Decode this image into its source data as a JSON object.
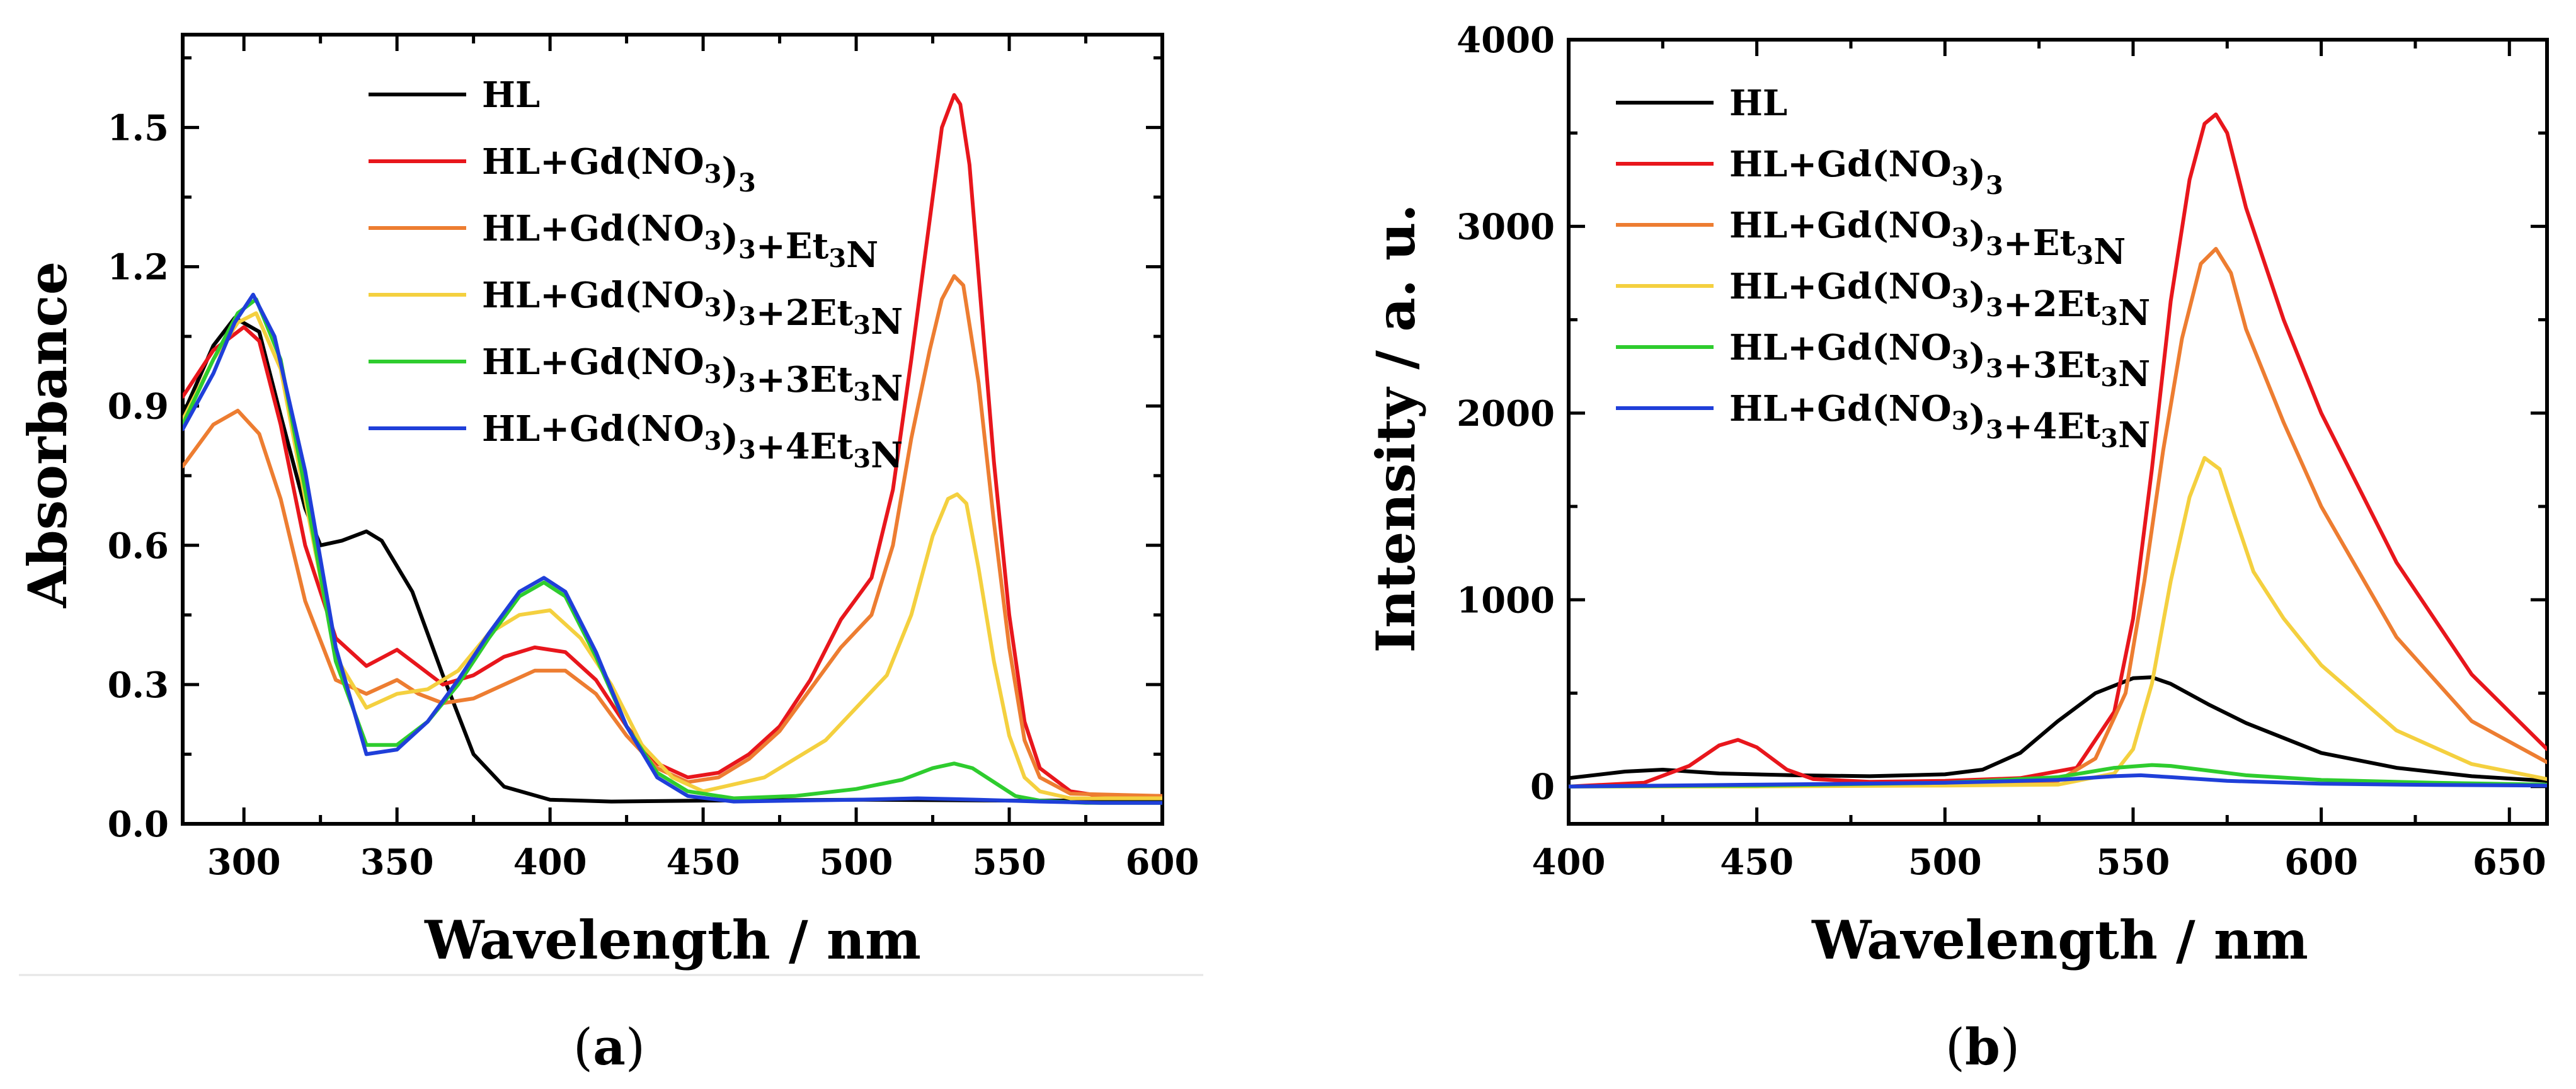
{
  "chart_data": [
    {
      "type": "line",
      "panel_label": "a",
      "xlabel": "Wavelength / nm",
      "ylabel": "Absorbance",
      "xlim": [
        280,
        600
      ],
      "ylim": [
        0,
        1.7
      ],
      "x_ticks": [
        300,
        350,
        400,
        450,
        500,
        550,
        600
      ],
      "y_ticks": [
        0.0,
        0.3,
        0.6,
        0.9,
        1.2,
        1.5
      ],
      "y_tick_labels": [
        "0.0",
        "0.3",
        "0.6",
        "0.9",
        "1.2",
        "1.5"
      ],
      "legend_position": "top-center",
      "series": [
        {
          "name": "HL",
          "legend": {
            "base": "HL",
            "sub": "",
            "tail": "",
            "sub2": "",
            "tail2": ""
          },
          "color": "#000000",
          "x": [
            280,
            290,
            297,
            305,
            312,
            320,
            325,
            332,
            340,
            345,
            355,
            365,
            375,
            385,
            400,
            420,
            450,
            500,
            550,
            600
          ],
          "y": [
            0.88,
            1.03,
            1.09,
            1.06,
            0.88,
            0.68,
            0.6,
            0.61,
            0.63,
            0.61,
            0.5,
            0.32,
            0.15,
            0.08,
            0.052,
            0.048,
            0.05,
            0.052,
            0.05,
            0.05
          ]
        },
        {
          "name": "HL+Gd(NO3)3",
          "legend": {
            "base": "HL+Gd(NO",
            "sub": "3",
            "tail": ")",
            "sub2": "3",
            "tail2": ""
          },
          "color": "#e8161c",
          "x": [
            280,
            290,
            300,
            305,
            312,
            320,
            330,
            340,
            350,
            357,
            365,
            375,
            385,
            395,
            405,
            415,
            425,
            435,
            445,
            455,
            465,
            475,
            485,
            495,
            505,
            512,
            518,
            524,
            528,
            532,
            534,
            537,
            541,
            545,
            550,
            555,
            560,
            570,
            580,
            600
          ],
          "y": [
            0.92,
            1.02,
            1.07,
            1.04,
            0.86,
            0.6,
            0.4,
            0.34,
            0.375,
            0.34,
            0.3,
            0.32,
            0.36,
            0.38,
            0.37,
            0.31,
            0.21,
            0.13,
            0.1,
            0.11,
            0.15,
            0.21,
            0.31,
            0.44,
            0.53,
            0.72,
            1.0,
            1.3,
            1.5,
            1.57,
            1.55,
            1.42,
            1.1,
            0.78,
            0.45,
            0.22,
            0.12,
            0.07,
            0.06,
            0.06
          ]
        },
        {
          "name": "HL+Gd(NO3)3+Et3N",
          "legend": {
            "base": "HL+Gd(NO",
            "sub": "3",
            "tail": ")",
            "sub2": "3",
            "tail2": "+Et₃N"
          },
          "color": "#ed7d31",
          "x": [
            280,
            290,
            298,
            305,
            312,
            320,
            330,
            340,
            350,
            357,
            365,
            375,
            385,
            395,
            405,
            415,
            425,
            435,
            445,
            455,
            465,
            475,
            485,
            495,
            505,
            512,
            518,
            524,
            528,
            532,
            535,
            540,
            545,
            550,
            555,
            560,
            570,
            600
          ],
          "y": [
            0.77,
            0.86,
            0.89,
            0.84,
            0.7,
            0.48,
            0.31,
            0.28,
            0.31,
            0.28,
            0.26,
            0.27,
            0.3,
            0.33,
            0.33,
            0.28,
            0.19,
            0.12,
            0.09,
            0.1,
            0.14,
            0.2,
            0.29,
            0.38,
            0.45,
            0.6,
            0.83,
            1.02,
            1.13,
            1.18,
            1.16,
            0.95,
            0.65,
            0.38,
            0.18,
            0.1,
            0.065,
            0.06
          ]
        },
        {
          "name": "HL+Gd(NO3)3+2Et3N",
          "legend": {
            "base": "HL+Gd(NO",
            "sub": "3",
            "tail": ")",
            "sub2": "3",
            "tail2": "+2Et₃N"
          },
          "color": "#f4d03f",
          "x": [
            280,
            290,
            298,
            304,
            312,
            320,
            330,
            340,
            350,
            360,
            370,
            380,
            390,
            400,
            410,
            420,
            430,
            440,
            450,
            470,
            490,
            500,
            510,
            518,
            525,
            530,
            533,
            536,
            540,
            545,
            550,
            555,
            560,
            570,
            600
          ],
          "y": [
            0.87,
            1.0,
            1.08,
            1.1,
            0.98,
            0.7,
            0.36,
            0.25,
            0.28,
            0.29,
            0.33,
            0.41,
            0.45,
            0.46,
            0.4,
            0.3,
            0.17,
            0.1,
            0.07,
            0.1,
            0.18,
            0.25,
            0.32,
            0.45,
            0.62,
            0.7,
            0.71,
            0.69,
            0.55,
            0.35,
            0.19,
            0.1,
            0.07,
            0.055,
            0.055
          ]
        },
        {
          "name": "HL+Gd(NO3)3+3Et3N",
          "legend": {
            "base": "HL+Gd(NO",
            "sub": "3",
            "tail": ")",
            "sub2": "3",
            "tail2": "+3Et₃N"
          },
          "color": "#2ecc2e",
          "x": [
            280,
            290,
            298,
            304,
            312,
            320,
            330,
            340,
            350,
            360,
            370,
            380,
            390,
            398,
            405,
            415,
            425,
            435,
            445,
            460,
            480,
            500,
            515,
            525,
            532,
            538,
            545,
            552,
            560,
            575,
            600
          ],
          "y": [
            0.86,
            1.0,
            1.1,
            1.13,
            1.0,
            0.72,
            0.35,
            0.17,
            0.17,
            0.22,
            0.3,
            0.4,
            0.49,
            0.52,
            0.49,
            0.36,
            0.21,
            0.11,
            0.07,
            0.055,
            0.06,
            0.075,
            0.095,
            0.12,
            0.13,
            0.12,
            0.09,
            0.06,
            0.05,
            0.045,
            0.045
          ]
        },
        {
          "name": "HL+Gd(NO3)3+4Et3N",
          "legend": {
            "base": "HL+Gd(NO",
            "sub": "3",
            "tail": ")",
            "sub2": "3",
            "tail2": "+4Et₃N"
          },
          "color": "#1f3fd9",
          "x": [
            280,
            290,
            297,
            303,
            310,
            320,
            330,
            340,
            350,
            360,
            370,
            380,
            390,
            398,
            405,
            415,
            425,
            435,
            445,
            460,
            480,
            500,
            520,
            540,
            560,
            580,
            600
          ],
          "y": [
            0.85,
            0.97,
            1.08,
            1.14,
            1.05,
            0.76,
            0.38,
            0.15,
            0.16,
            0.22,
            0.31,
            0.41,
            0.5,
            0.53,
            0.5,
            0.37,
            0.21,
            0.1,
            0.06,
            0.048,
            0.05,
            0.052,
            0.055,
            0.052,
            0.048,
            0.045,
            0.045
          ]
        }
      ]
    },
    {
      "type": "line",
      "panel_label": "b",
      "xlabel": "Wavelength / nm",
      "ylabel": "Intensity / a. u.",
      "xlim": [
        400,
        660
      ],
      "ylim": [
        -200,
        4000
      ],
      "x_ticks": [
        400,
        450,
        500,
        550,
        600,
        650
      ],
      "y_ticks": [
        0,
        1000,
        2000,
        3000,
        4000
      ],
      "y_tick_labels": [
        "0",
        "1000",
        "2000",
        "3000",
        "4000"
      ],
      "legend_position": "top-left",
      "series": [
        {
          "name": "HL",
          "legend": {
            "base": "HL",
            "sub": "",
            "tail": "",
            "sub2": "",
            "tail2": ""
          },
          "color": "#000000",
          "x": [
            400,
            415,
            425,
            440,
            460,
            480,
            500,
            510,
            520,
            530,
            540,
            550,
            555,
            560,
            570,
            580,
            600,
            620,
            640,
            660
          ],
          "y": [
            45,
            80,
            90,
            70,
            60,
            55,
            65,
            90,
            180,
            350,
            500,
            580,
            585,
            550,
            440,
            340,
            180,
            100,
            55,
            30
          ]
        },
        {
          "name": "HL+Gd(NO3)3",
          "legend": {
            "base": "HL+Gd(NO",
            "sub": "3",
            "tail": ")",
            "sub2": "3",
            "tail2": ""
          },
          "color": "#e8161c",
          "x": [
            400,
            420,
            432,
            440,
            445,
            450,
            458,
            465,
            480,
            500,
            520,
            535,
            545,
            550,
            555,
            560,
            565,
            569,
            572,
            575,
            580,
            590,
            600,
            620,
            640,
            660
          ],
          "y": [
            0,
            20,
            110,
            220,
            250,
            210,
            90,
            40,
            25,
            30,
            45,
            100,
            400,
            900,
            1700,
            2600,
            3250,
            3550,
            3600,
            3500,
            3100,
            2500,
            2000,
            1200,
            600,
            200
          ]
        },
        {
          "name": "HL+Gd(NO3)3+Et3N",
          "legend": {
            "base": "HL+Gd(NO",
            "sub": "3",
            "tail": ")",
            "sub2": "3",
            "tail2": "+Et₃N"
          },
          "color": "#ed7d31",
          "x": [
            400,
            450,
            500,
            530,
            540,
            548,
            553,
            558,
            563,
            568,
            572,
            576,
            580,
            590,
            600,
            620,
            640,
            660
          ],
          "y": [
            0,
            5,
            10,
            30,
            150,
            500,
            1100,
            1800,
            2400,
            2800,
            2880,
            2750,
            2450,
            1950,
            1500,
            800,
            350,
            130
          ]
        },
        {
          "name": "HL+Gd(NO3)3+2Et3N",
          "legend": {
            "base": "HL+Gd(NO",
            "sub": "3",
            "tail": ")",
            "sub2": "3",
            "tail2": "+2Et₃N"
          },
          "color": "#f4d03f",
          "x": [
            400,
            450,
            500,
            530,
            545,
            550,
            555,
            560,
            565,
            569,
            573,
            577,
            582,
            590,
            600,
            620,
            640,
            660
          ],
          "y": [
            0,
            0,
            5,
            10,
            70,
            200,
            550,
            1100,
            1550,
            1760,
            1700,
            1450,
            1150,
            900,
            650,
            300,
            120,
            40
          ]
        },
        {
          "name": "HL+Gd(NO3)3+3Et3N",
          "legend": {
            "base": "HL+Gd(NO",
            "sub": "3",
            "tail": ")",
            "sub2": "3",
            "tail2": "+3Et₃N"
          },
          "color": "#2ecc2e",
          "x": [
            400,
            450,
            500,
            530,
            545,
            555,
            560,
            570,
            580,
            600,
            630,
            660
          ],
          "y": [
            0,
            5,
            20,
            50,
            100,
            115,
            110,
            85,
            60,
            35,
            20,
            10
          ]
        },
        {
          "name": "HL+Gd(NO3)3+4Et3N",
          "legend": {
            "base": "HL+Gd(NO",
            "sub": "3",
            "tail": ")",
            "sub2": "3",
            "tail2": "+4Et₃N"
          },
          "color": "#1f3fd9",
          "x": [
            400,
            450,
            500,
            530,
            545,
            552,
            560,
            575,
            600,
            630,
            660
          ],
          "y": [
            0,
            10,
            20,
            35,
            55,
            60,
            50,
            30,
            15,
            8,
            5
          ]
        }
      ]
    }
  ]
}
